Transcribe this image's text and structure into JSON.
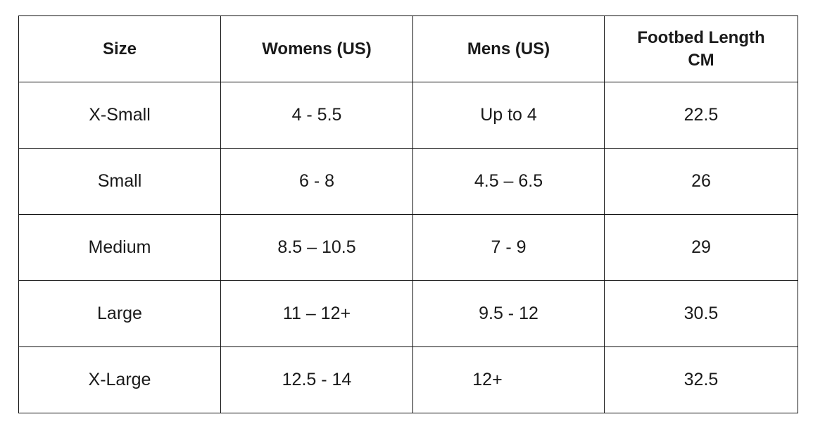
{
  "table": {
    "headers": [
      "Size",
      "Womens (US)",
      "Mens (US)",
      "Footbed Length CM"
    ],
    "rows": [
      [
        "X-Small",
        "4 - 5.5",
        "Up to 4",
        "22.5"
      ],
      [
        "Small",
        "6 - 8",
        "4.5 – 6.5",
        "26"
      ],
      [
        "Medium",
        "8.5 – 10.5",
        "7 - 9",
        "29"
      ],
      [
        "Large",
        "11 – 12+",
        "9.5 - 12",
        "30.5"
      ],
      [
        "X-Large",
        "12.5 - 14",
        "12+",
        "32.5"
      ]
    ]
  }
}
